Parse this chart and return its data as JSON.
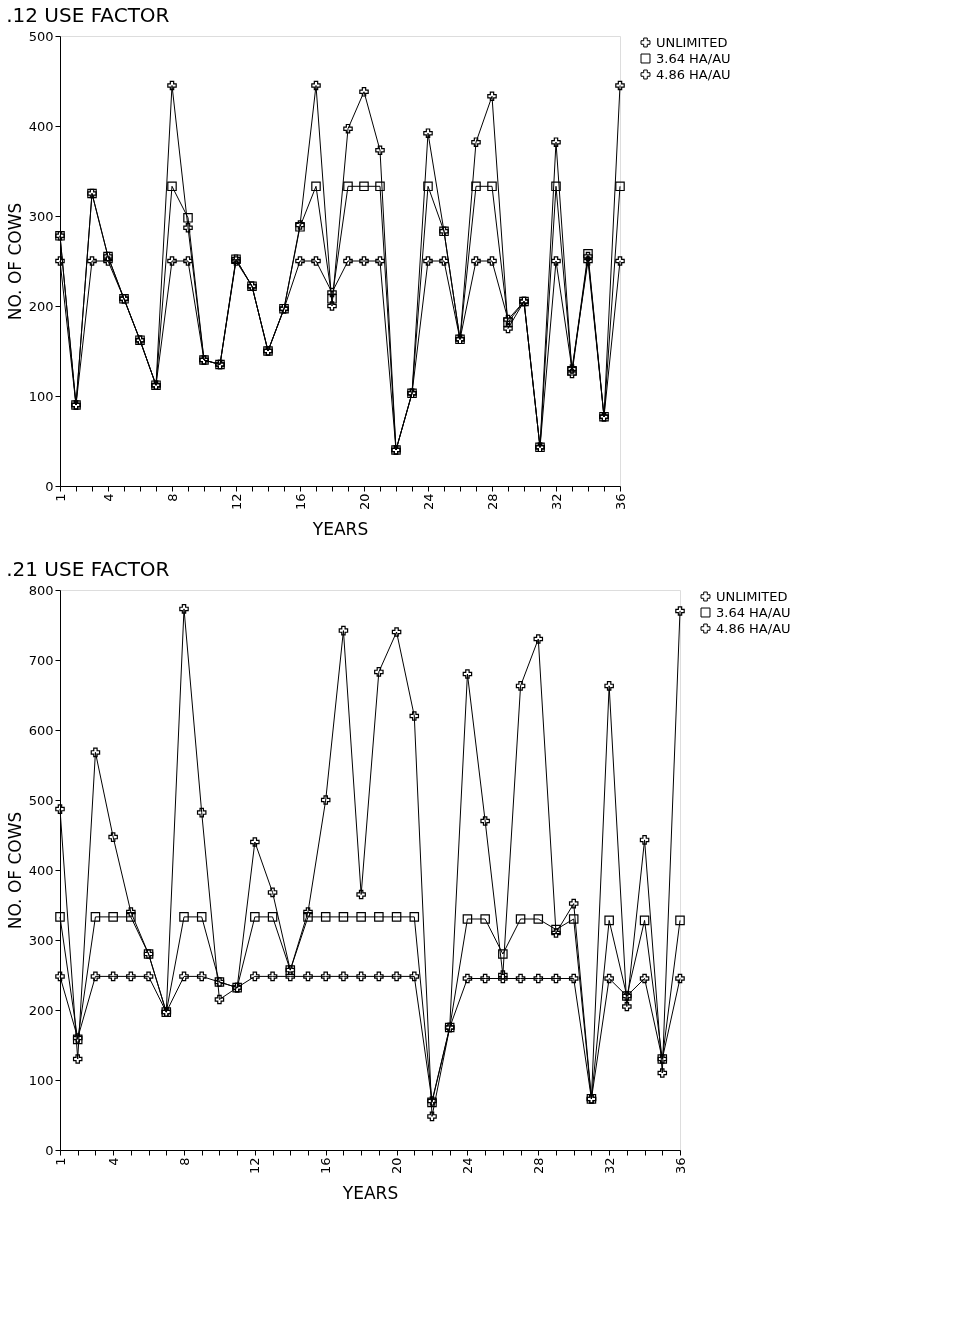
{
  "chart_data": [
    {
      "type": "line",
      "title": ".12 USE FACTOR",
      "xlabel": "YEARS",
      "ylabel": "NO. OF COWS",
      "x": [
        1,
        2,
        3,
        4,
        5,
        6,
        7,
        8,
        9,
        10,
        11,
        12,
        13,
        14,
        15,
        16,
        17,
        18,
        19,
        20,
        21,
        22,
        23,
        24,
        25,
        26,
        27,
        28,
        29,
        30,
        31,
        32,
        33,
        34,
        35,
        36
      ],
      "xlim": [
        1,
        36
      ],
      "xticks": [
        1,
        {
          "value": 2,
          "label": null
        },
        {
          "value": 3,
          "label": null
        },
        4,
        {
          "value": 5,
          "label": null
        },
        {
          "value": 6,
          "label": null
        },
        {
          "value": 7,
          "label": null
        },
        8,
        {
          "value": 9,
          "label": null
        },
        {
          "value": 10,
          "label": null
        },
        {
          "value": 11,
          "label": null
        },
        12,
        {
          "value": 13,
          "label": null
        },
        {
          "value": 14,
          "label": null
        },
        {
          "value": 15,
          "label": null
        },
        16,
        {
          "value": 17,
          "label": null
        },
        {
          "value": 18,
          "label": null
        },
        {
          "value": 19,
          "label": null
        },
        20,
        {
          "value": 21,
          "label": null
        },
        {
          "value": 22,
          "label": null
        },
        {
          "value": 23,
          "label": null
        },
        24,
        {
          "value": 25,
          "label": null
        },
        {
          "value": 26,
          "label": null
        },
        {
          "value": 27,
          "label": null
        },
        28,
        {
          "value": 29,
          "label": null
        },
        {
          "value": 30,
          "label": null
        },
        {
          "value": 31,
          "label": null
        },
        32,
        {
          "value": 33,
          "label": null
        },
        {
          "value": 34,
          "label": null
        },
        {
          "value": 35,
          "label": null
        },
        36
      ],
      "ylim": [
        0,
        500
      ],
      "yticks": [
        0,
        100,
        200,
        300,
        400,
        500
      ],
      "grid": false,
      "legend": "top right",
      "line_style": "solid",
      "series": [
        {
          "name": "UNLIMITED",
          "color": "#000000",
          "marker": "cross",
          "values": [
            278,
            90,
            325,
            255,
            208,
            162,
            112,
            445,
            287,
            140,
            135,
            252,
            222,
            150,
            197,
            290,
            445,
            200,
            397,
            438,
            373,
            40,
            103,
            392,
            283,
            163,
            382,
            433,
            175,
            205,
            43,
            382,
            125,
            255,
            77,
            445
          ]
        },
        {
          "name": "3.64 HA/AU",
          "color": "#000000",
          "marker": "square",
          "values": [
            278,
            90,
            325,
            255,
            208,
            162,
            112,
            333,
            298,
            140,
            135,
            252,
            222,
            150,
            197,
            288,
            333,
            208,
            333,
            333,
            333,
            40,
            103,
            333,
            283,
            163,
            333,
            333,
            182,
            205,
            43,
            333,
            128,
            258,
            77,
            333
          ]
        },
        {
          "name": "4.86 HA/AU",
          "color": "#000000",
          "marker": "cross",
          "values": [
            250,
            90,
            250,
            250,
            208,
            162,
            112,
            250,
            250,
            140,
            135,
            250,
            222,
            150,
            197,
            250,
            250,
            215,
            250,
            250,
            250,
            40,
            103,
            250,
            250,
            163,
            250,
            250,
            185,
            205,
            43,
            250,
            130,
            250,
            77,
            250
          ]
        }
      ]
    },
    {
      "type": "line",
      "title": ".21 USE FACTOR",
      "xlabel": "YEARS",
      "ylabel": "NO. OF COWS",
      "x": [
        1,
        2,
        3,
        4,
        5,
        6,
        7,
        8,
        9,
        10,
        11,
        12,
        13,
        14,
        15,
        16,
        17,
        18,
        19,
        20,
        21,
        22,
        23,
        24,
        25,
        26,
        27,
        28,
        29,
        30,
        31,
        32,
        33,
        34,
        35,
        36
      ],
      "xlim": [
        1,
        36
      ],
      "xticks": [
        1,
        {
          "value": 2,
          "label": null
        },
        {
          "value": 3,
          "label": null
        },
        4,
        {
          "value": 5,
          "label": null
        },
        {
          "value": 6,
          "label": null
        },
        {
          "value": 7,
          "label": null
        },
        8,
        {
          "value": 9,
          "label": null
        },
        {
          "value": 10,
          "label": null
        },
        {
          "value": 11,
          "label": null
        },
        12,
        {
          "value": 13,
          "label": null
        },
        {
          "value": 14,
          "label": null
        },
        {
          "value": 15,
          "label": null
        },
        16,
        {
          "value": 17,
          "label": null
        },
        {
          "value": 18,
          "label": null
        },
        {
          "value": 19,
          "label": null
        },
        20,
        {
          "value": 21,
          "label": null
        },
        {
          "value": 22,
          "label": null
        },
        {
          "value": 23,
          "label": null
        },
        24,
        {
          "value": 25,
          "label": null
        },
        {
          "value": 26,
          "label": null
        },
        {
          "value": 27,
          "label": null
        },
        28,
        {
          "value": 29,
          "label": null
        },
        {
          "value": 30,
          "label": null
        },
        {
          "value": 31,
          "label": null
        },
        32,
        {
          "value": 33,
          "label": null
        },
        {
          "value": 34,
          "label": null
        },
        {
          "value": 35,
          "label": null
        },
        36
      ],
      "ylim": [
        0,
        800
      ],
      "yticks": [
        0,
        100,
        200,
        300,
        400,
        500,
        600,
        700,
        800
      ],
      "grid": false,
      "legend": "top right",
      "line_style": "solid",
      "series": [
        {
          "name": "UNLIMITED",
          "color": "#000000",
          "marker": "cross",
          "values": [
            487,
            130,
            568,
            447,
            340,
            280,
            197,
            773,
            482,
            215,
            232,
            440,
            368,
            257,
            340,
            500,
            742,
            365,
            683,
            740,
            620,
            48,
            175,
            680,
            470,
            250,
            663,
            730,
            310,
            352,
            73,
            663,
            205,
            443,
            110,
            770
          ]
        },
        {
          "name": "3.64 HA/AU",
          "color": "#000000",
          "marker": "square",
          "values": [
            333,
            158,
            333,
            333,
            333,
            280,
            197,
            333,
            333,
            240,
            232,
            333,
            333,
            257,
            333,
            333,
            333,
            333,
            333,
            333,
            333,
            68,
            175,
            330,
            330,
            280,
            330,
            330,
            315,
            330,
            73,
            328,
            220,
            328,
            130,
            328
          ]
        },
        {
          "name": "4.86 HA/AU",
          "color": "#000000",
          "marker": "cross",
          "values": [
            248,
            160,
            248,
            248,
            248,
            248,
            197,
            248,
            248,
            240,
            232,
            248,
            248,
            248,
            248,
            248,
            248,
            248,
            248,
            248,
            248,
            70,
            175,
            245,
            245,
            245,
            245,
            245,
            245,
            245,
            73,
            245,
            220,
            245,
            130,
            245
          ]
        }
      ]
    }
  ]
}
